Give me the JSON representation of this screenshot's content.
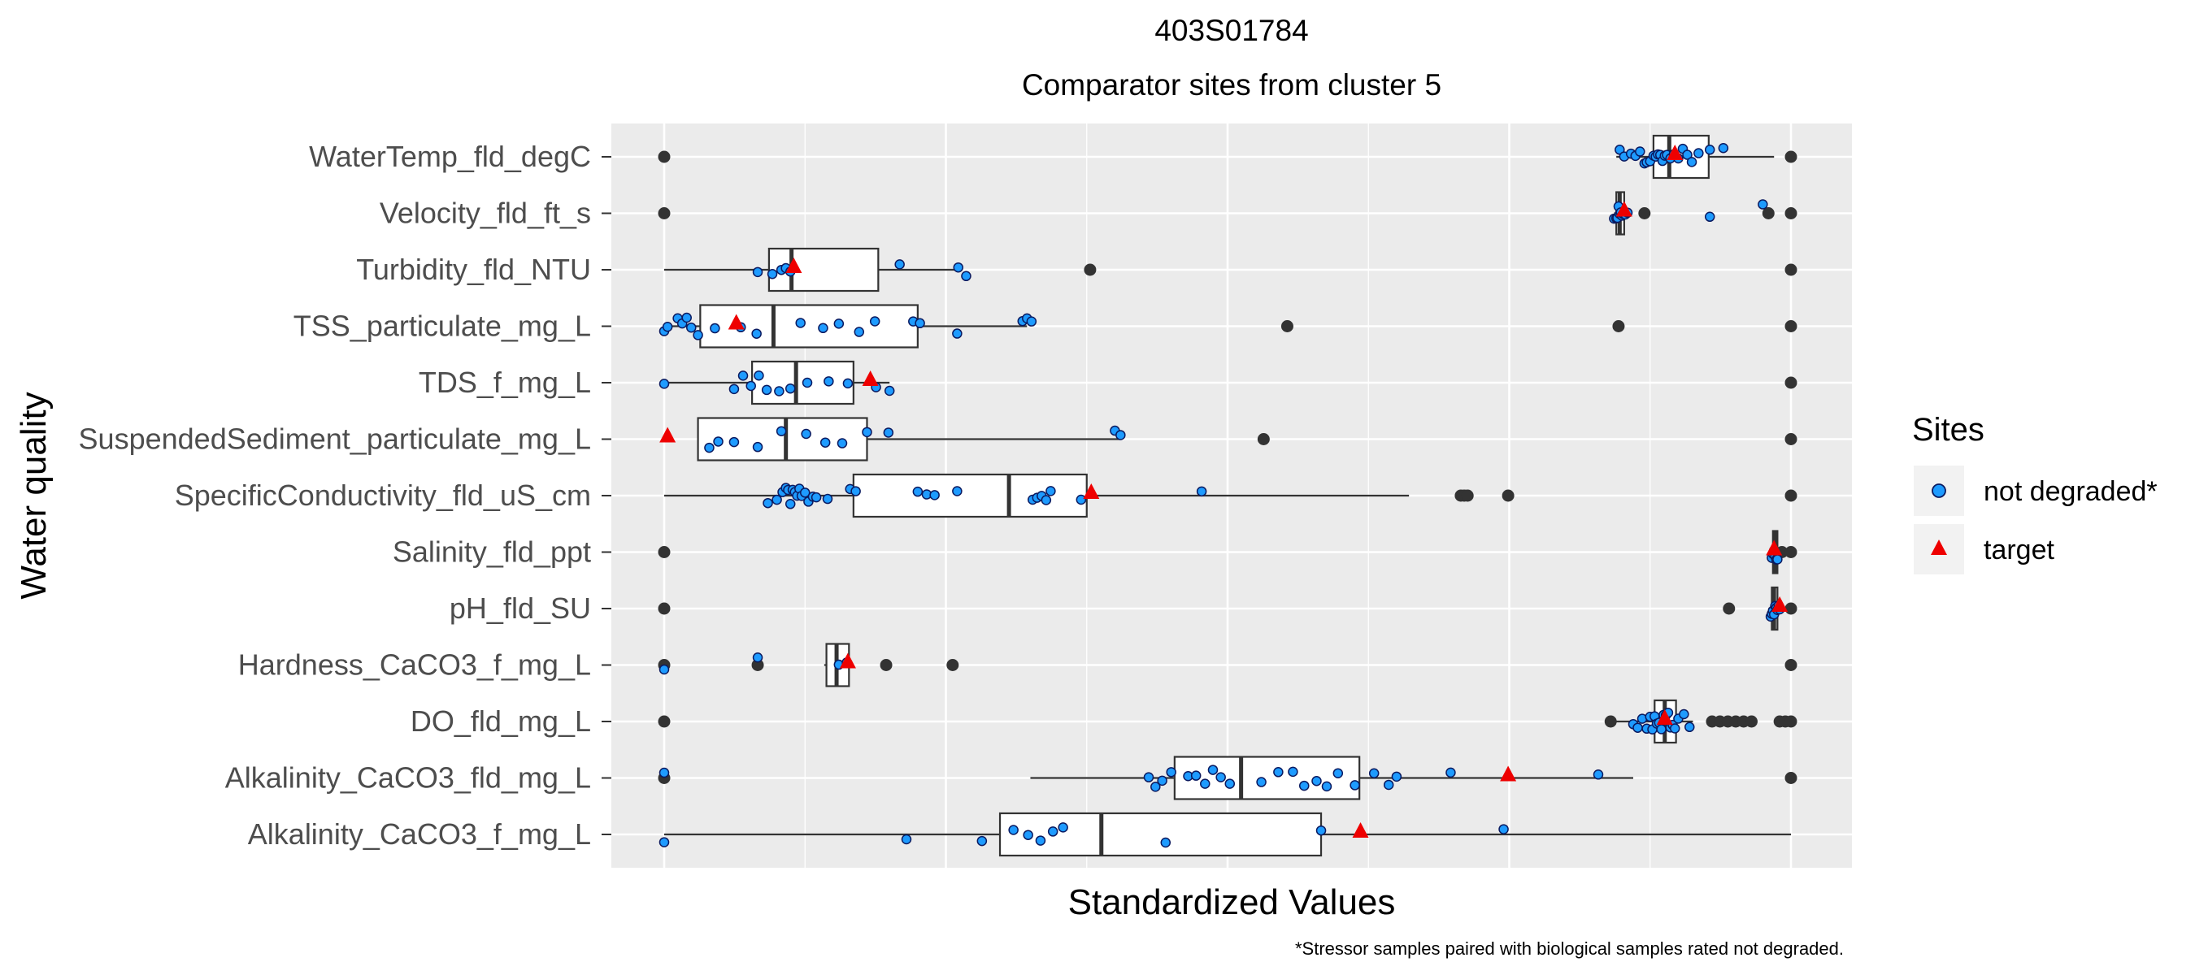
{
  "chart_data": {
    "type": "boxplot",
    "title": "403S01784",
    "subtitle": "Comparator sites from cluster 5",
    "xlabel": "Standardized Values",
    "ylabel": "Water quality",
    "xlim": [
      -0.05,
      1.05
    ],
    "x_tick_labels_shown": false,
    "grid": true,
    "legend": {
      "title": "Sites",
      "placement": "right",
      "entries": [
        {
          "label": "not degraded*",
          "shape": "circle",
          "color": "#1e9bff"
        },
        {
          "label": "target",
          "shape": "triangle",
          "color": "#ee0000"
        }
      ]
    },
    "caption": "*Stressor samples paired with biological samples rated not degraded.",
    "categories": [
      "WaterTemp_fld_degC",
      "Velocity_fld_ft_s",
      "Turbidity_fld_NTU",
      "TSS_particulate_mg_L",
      "TDS_f_mg_L",
      "SuspendedSediment_particulate_mg_L",
      "SpecificConductivity_fld_uS_cm",
      "Salinity_fld_ppt",
      "pH_fld_SU",
      "Hardness_CaCO3_f_mg_L",
      "DO_fld_mg_L",
      "Alkalinity_CaCO3_fld_mg_L",
      "Alkalinity_CaCO3_f_mg_L"
    ],
    "boxes": [
      {
        "category": "WaterTemp_fld_degC",
        "whisker_low": 0.845,
        "q1": 0.878,
        "median": 0.892,
        "q3": 0.927,
        "whisker_high": 0.985,
        "outliers": [
          0,
          1
        ],
        "not_degraded": [
          0.848,
          0.852,
          0.858,
          0.862,
          0.866,
          0.87,
          0.872,
          0.875,
          0.878,
          0.88,
          0.882,
          0.884,
          0.886,
          0.888,
          0.89,
          0.893,
          0.896,
          0.9,
          0.904,
          0.908,
          0.912,
          0.918,
          0.928,
          0.94
        ],
        "target": 0.897
      },
      {
        "category": "Velocity_fld_ft_s",
        "whisker_low": 0.843,
        "q1": 0.845,
        "median": 0.848,
        "q3": 0.852,
        "whisker_high": 0.857,
        "outliers": [
          0,
          0.87,
          0.98,
          1
        ],
        "not_degraded": [
          0.843,
          0.845,
          0.846,
          0.847,
          0.848,
          0.849,
          0.85,
          0.851,
          0.852,
          0.853,
          0.855,
          0.928,
          0.975
        ],
        "target": 0.852
      },
      {
        "category": "Turbidity_fld_NTU",
        "whisker_low": 0,
        "q1": 0.093,
        "median": 0.113,
        "q3": 0.19,
        "whisker_high": 0.262,
        "outliers": [
          0.378,
          1
        ],
        "not_degraded": [
          0.083,
          0.096,
          0.104,
          0.108,
          0.112,
          0.209,
          0.261,
          0.268
        ],
        "target": 0.115
      },
      {
        "category": "TSS_particulate_mg_L",
        "whisker_low": 0,
        "q1": 0.032,
        "median": 0.097,
        "q3": 0.225,
        "whisker_high": 0.322,
        "outliers": [
          0.553,
          0.847,
          1
        ],
        "not_degraded": [
          0.0,
          0.003,
          0.012,
          0.016,
          0.02,
          0.024,
          0.03,
          0.045,
          0.068,
          0.082,
          0.121,
          0.141,
          0.155,
          0.173,
          0.187,
          0.221,
          0.227,
          0.26,
          0.318,
          0.322,
          0.326
        ],
        "target": 0.064
      },
      {
        "category": "TDS_f_mg_L",
        "whisker_low": 0,
        "q1": 0.078,
        "median": 0.117,
        "q3": 0.168,
        "whisker_high": 0.2,
        "outliers": [
          1
        ],
        "not_degraded": [
          0.0,
          0.062,
          0.07,
          0.077,
          0.084,
          0.091,
          0.102,
          0.112,
          0.127,
          0.146,
          0.163,
          0.188,
          0.2
        ],
        "target": 0.183
      },
      {
        "category": "SuspendedSediment_particulate_mg_L",
        "whisker_low": 0.03,
        "q1": 0.03,
        "median": 0.108,
        "q3": 0.18,
        "whisker_high": 0.405,
        "outliers": [
          0.532,
          1
        ],
        "not_degraded": [
          0.04,
          0.048,
          0.062,
          0.083,
          0.104,
          0.126,
          0.143,
          0.158,
          0.18,
          0.199,
          0.4,
          0.405
        ],
        "target": 0.003
      },
      {
        "category": "SpecificConductivity_fld_uS_cm",
        "whisker_low": 0,
        "q1": 0.168,
        "median": 0.306,
        "q3": 0.375,
        "whisker_high": 0.661,
        "outliers": [
          0.707,
          0.71,
          0.713,
          0.749,
          1
        ],
        "not_degraded": [
          0.092,
          0.1,
          0.105,
          0.108,
          0.11,
          0.112,
          0.114,
          0.116,
          0.118,
          0.12,
          0.122,
          0.125,
          0.128,
          0.132,
          0.135,
          0.145,
          0.165,
          0.17,
          0.225,
          0.233,
          0.24,
          0.26,
          0.327,
          0.331,
          0.335,
          0.339,
          0.343,
          0.37,
          0.477
        ],
        "target": 0.379
      },
      {
        "category": "Salinity_fld_ppt",
        "whisker_low": 0.982,
        "q1": 0.984,
        "median": 0.986,
        "q3": 0.988,
        "whisker_high": 0.995,
        "outliers": [
          0,
          0.992,
          1
        ],
        "not_degraded": [
          0.983,
          0.984,
          0.985,
          0.986,
          0.987,
          0.988
        ],
        "target": 0.985
      },
      {
        "category": "pH_fld_SU",
        "whisker_low": 0.98,
        "q1": 0.983,
        "median": 0.985,
        "q3": 0.988,
        "whisker_high": 0.995,
        "outliers": [
          0,
          0.945,
          1
        ],
        "not_degraded": [
          0.982,
          0.983,
          0.984,
          0.985,
          0.986,
          0.987,
          0.988,
          0.989,
          0.99
        ],
        "target": 0.99
      },
      {
        "category": "Hardness_CaCO3_f_mg_L",
        "whisker_low": 0.142,
        "q1": 0.144,
        "median": 0.153,
        "q3": 0.164,
        "whisker_high": 0.166,
        "outliers": [
          0,
          0.083,
          0.197,
          0.256,
          1
        ],
        "not_degraded": [
          0.0,
          0.083,
          0.155,
          0.162
        ],
        "target": 0.163
      },
      {
        "category": "DO_fld_mg_L",
        "whisker_low": 0.838,
        "q1": 0.879,
        "median": 0.888,
        "q3": 0.898,
        "whisker_high": 0.913,
        "outliers": [
          0,
          0.84,
          0.93,
          0.937,
          0.944,
          0.951,
          0.958,
          0.965,
          0.99,
          0.995,
          1
        ],
        "not_degraded": [
          0.86,
          0.864,
          0.868,
          0.872,
          0.875,
          0.877,
          0.879,
          0.881,
          0.883,
          0.885,
          0.887,
          0.889,
          0.891,
          0.893,
          0.895,
          0.897,
          0.9,
          0.905,
          0.91
        ],
        "target": 0.888
      },
      {
        "category": "Alkalinity_CaCO3_fld_mg_L",
        "whisker_low": 0.325,
        "q1": 0.453,
        "median": 0.512,
        "q3": 0.617,
        "whisker_high": 0.86,
        "outliers": [
          0,
          1
        ],
        "not_degraded": [
          0.0,
          0.43,
          0.436,
          0.442,
          0.45,
          0.465,
          0.472,
          0.48,
          0.487,
          0.494,
          0.502,
          0.53,
          0.545,
          0.558,
          0.568,
          0.579,
          0.588,
          0.598,
          0.613,
          0.63,
          0.643,
          0.65,
          0.698,
          0.829
        ],
        "target": 0.749
      },
      {
        "category": "Alkalinity_CaCO3_f_mg_L",
        "whisker_low": 0,
        "q1": 0.298,
        "median": 0.388,
        "q3": 0.583,
        "whisker_high": 1,
        "outliers": [],
        "not_degraded": [
          0.0,
          0.215,
          0.282,
          0.31,
          0.323,
          0.334,
          0.345,
          0.354,
          0.445,
          0.583,
          0.745
        ],
        "target": 0.618
      }
    ]
  }
}
